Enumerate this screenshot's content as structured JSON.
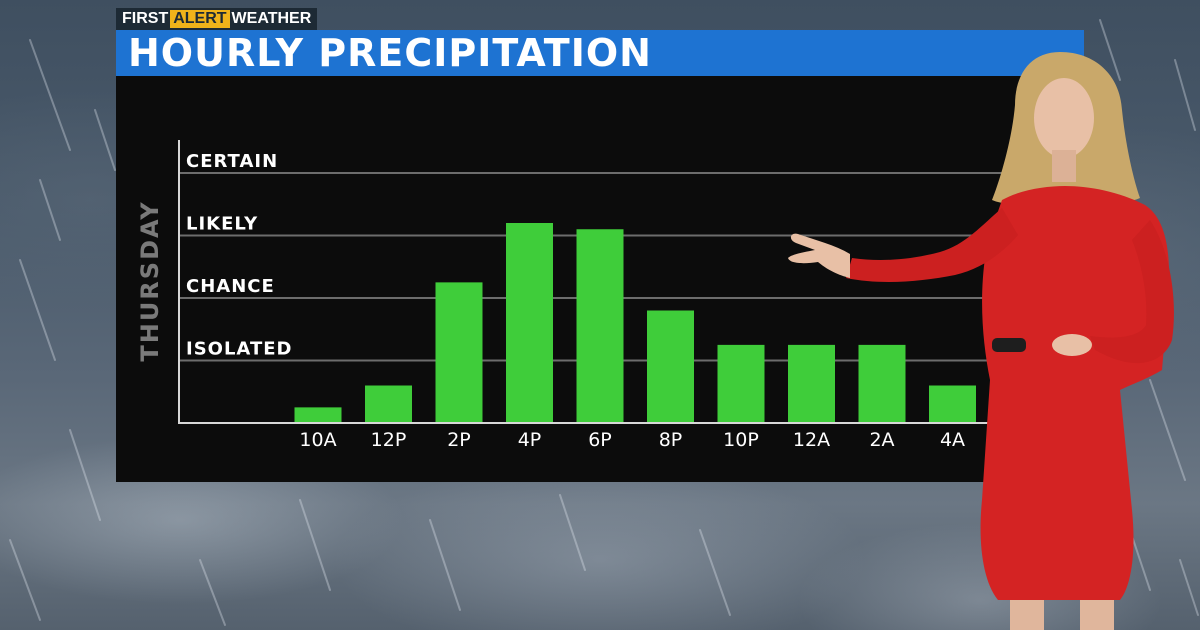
{
  "header": {
    "tag_first": "FIRST",
    "tag_alert": "ALERT",
    "tag_weather": "WEATHER",
    "title": "HOURLY PRECIPITATION"
  },
  "colors": {
    "bar": "#3fcd3a",
    "title_bar": "#1e73d2",
    "alert": "#f0b31a",
    "panel": "#0c0c0c",
    "dress": "#d42323"
  },
  "chart_data": {
    "type": "bar",
    "ylabel": "THURSDAY",
    "categories": [
      "10A",
      "12P",
      "2P",
      "4P",
      "6P",
      "8P",
      "10P",
      "12A",
      "2A",
      "4A"
    ],
    "values": [
      0.25,
      0.6,
      2.25,
      3.2,
      3.1,
      1.8,
      1.25,
      1.25,
      1.25,
      0.6
    ],
    "y_levels": [
      "ISOLATED",
      "CHANCE",
      "LIKELY",
      "CERTAIN"
    ],
    "ylim": [
      0,
      4
    ],
    "grid": true
  }
}
